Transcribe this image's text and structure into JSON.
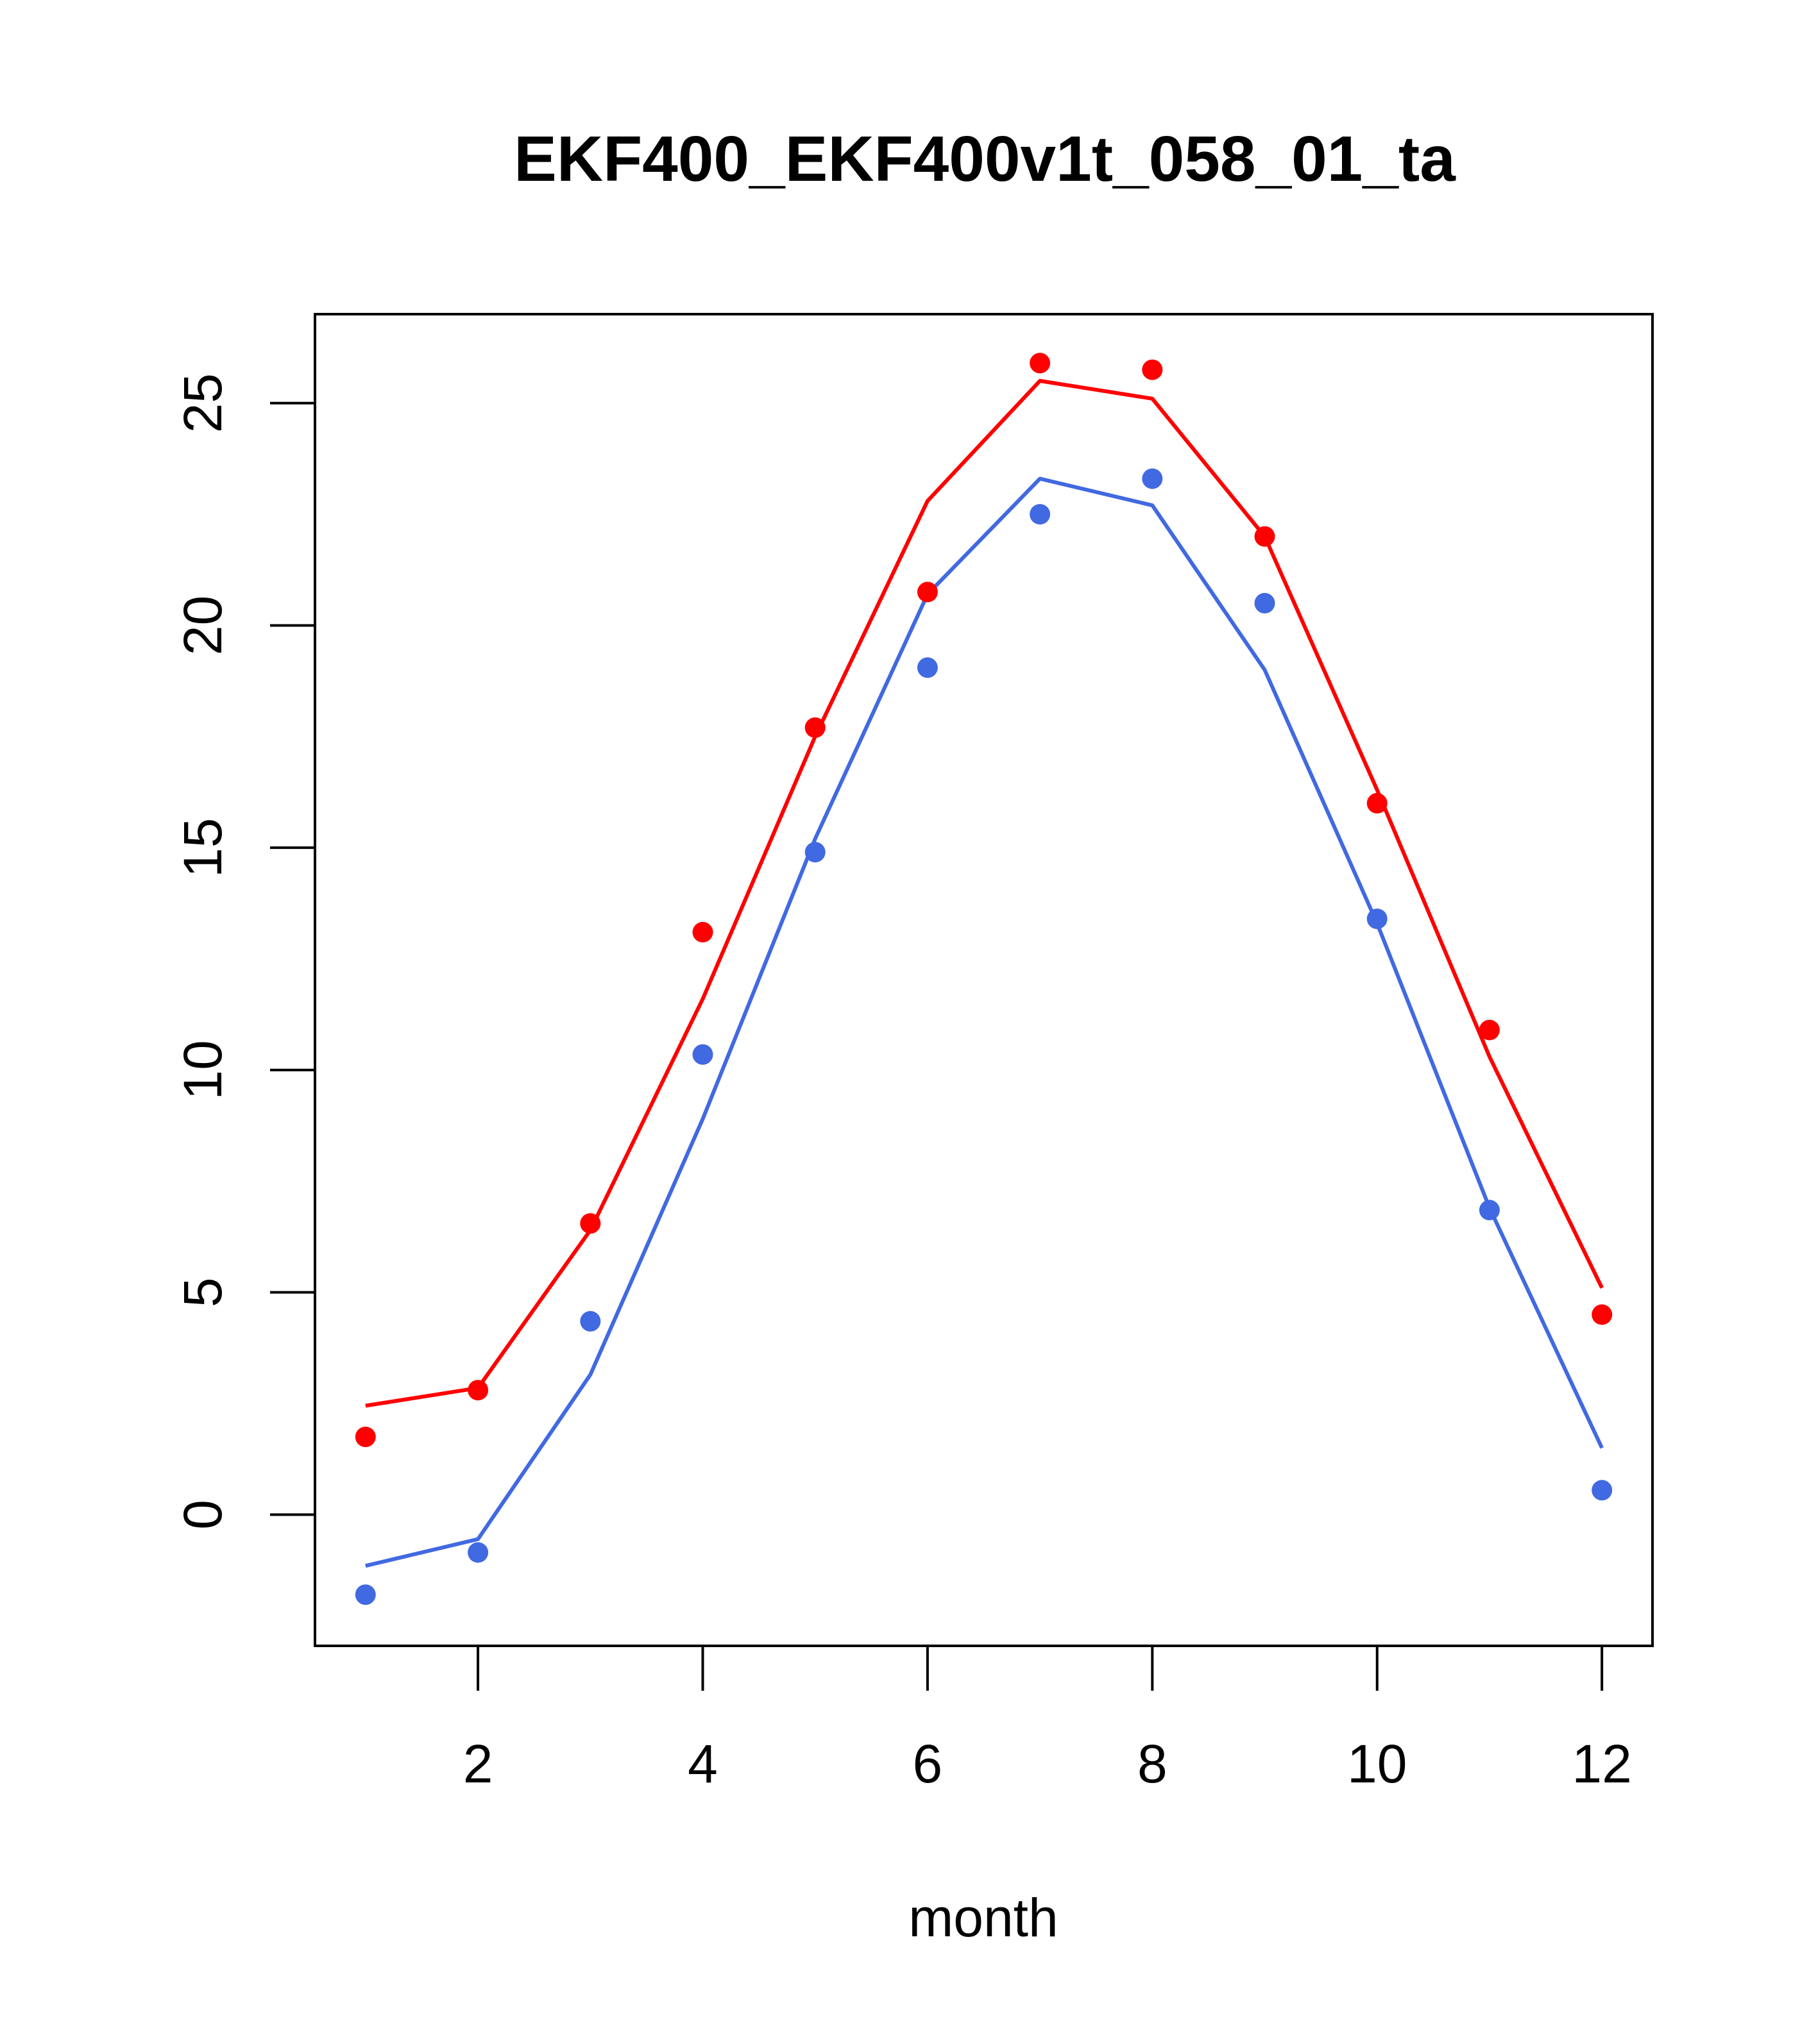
{
  "chart_data": {
    "type": "line",
    "title": "EKF400_EKF400v1t_058_01_ta",
    "xlabel": "month",
    "ylabel": "",
    "xlim": [
      0.55,
      12.45
    ],
    "ylim": [
      -2.95,
      27.0
    ],
    "x_ticks": [
      2,
      4,
      6,
      8,
      10,
      12
    ],
    "x_tick_labels": [
      "2",
      "4",
      "6",
      "8",
      "10",
      "12"
    ],
    "y_ticks": [
      0,
      5,
      10,
      15,
      20,
      25
    ],
    "y_tick_labels": [
      "0",
      "5",
      "10",
      "15",
      "20",
      "25"
    ],
    "grid": false,
    "legend": "none",
    "x": [
      1,
      2,
      3,
      4,
      5,
      6,
      7,
      8,
      9,
      10,
      11,
      12
    ],
    "series": [
      {
        "name": "red-line",
        "kind": "line",
        "color": "#ff0000",
        "values": [
          2.45,
          2.85,
          6.4,
          11.6,
          17.5,
          22.8,
          25.5,
          25.1,
          22.0,
          16.3,
          10.3,
          5.1
        ]
      },
      {
        "name": "red-points",
        "kind": "points",
        "color": "#ff0000",
        "values": [
          1.75,
          2.8,
          6.55,
          13.1,
          17.7,
          20.75,
          25.9,
          25.75,
          22.0,
          16.0,
          10.9,
          4.5
        ]
      },
      {
        "name": "blue-line",
        "kind": "line",
        "color": "#4169e1",
        "values": [
          -1.15,
          -0.55,
          3.15,
          8.9,
          15.2,
          20.7,
          23.3,
          22.7,
          19.0,
          13.3,
          6.9,
          1.5
        ]
      },
      {
        "name": "blue-points",
        "kind": "points",
        "color": "#4169e1",
        "values": [
          -1.8,
          -0.85,
          4.35,
          10.35,
          14.9,
          19.05,
          22.5,
          23.3,
          20.5,
          13.4,
          6.85,
          0.55
        ]
      }
    ]
  }
}
